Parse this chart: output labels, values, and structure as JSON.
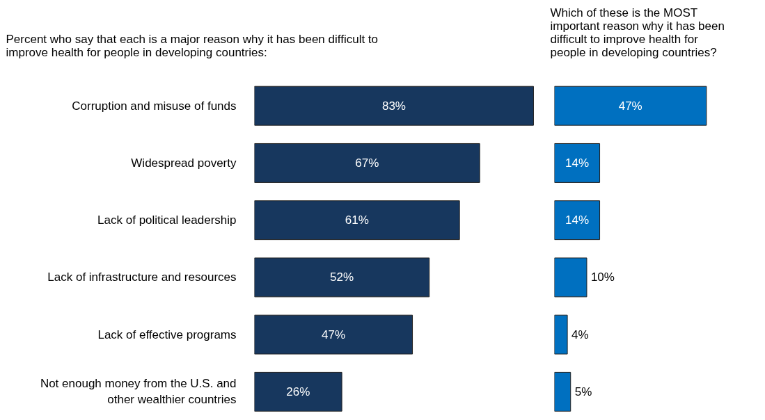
{
  "chart_data": [
    {
      "type": "bar",
      "orientation": "horizontal",
      "title": "Percent who say that each is a major reason why it has been difficult to\nimprove health for people in developing countries:",
      "categories": [
        "Corruption and misuse of funds",
        "Widespread poverty",
        "Lack of political leadership",
        "Lack of infrastructure and resources",
        "Lack of effective programs",
        "Not enough money from the U.S. and\nother wealthier countries"
      ],
      "values": [
        83,
        67,
        61,
        52,
        47,
        26
      ],
      "value_labels": [
        "83%",
        "67%",
        "61%",
        "52%",
        "47%",
        "26%"
      ],
      "color": "#17375e",
      "tick_labels": "y"
    },
    {
      "type": "bar",
      "orientation": "horizontal",
      "title": "Which of these is the MOST\nimportant reason why it has been\ndifficult to improve health for\npeople in developing countries?",
      "categories": [
        null,
        null,
        null,
        null,
        null,
        null
      ],
      "values": [
        47,
        14,
        14,
        10,
        4,
        5
      ],
      "value_labels": [
        "47%",
        "14%",
        "14%",
        "10%",
        "4%",
        "5%"
      ],
      "color": "#0070c0",
      "tick_labels": false
    }
  ]
}
